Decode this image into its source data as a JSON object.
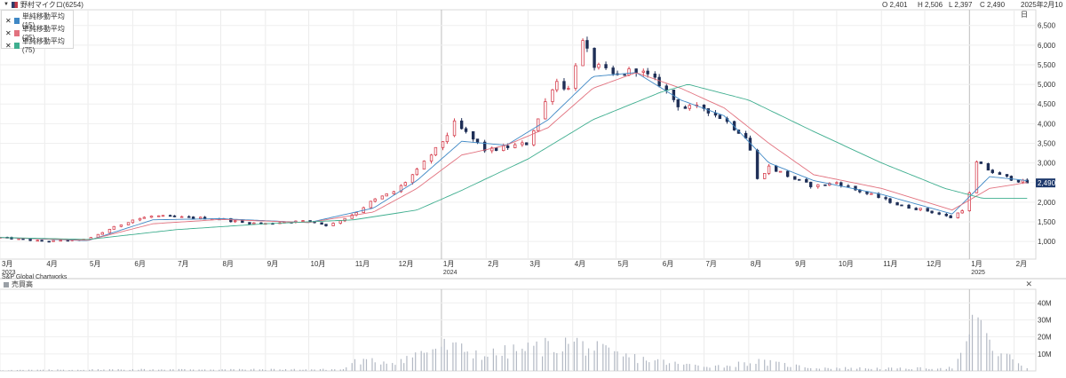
{
  "header": {
    "symbol": "野村マイクロ(6254)",
    "ohlc": {
      "open": "O 2,401",
      "high": "H 2,506",
      "low": "L 2,397",
      "close": "C 2,490"
    },
    "date": "2025年2月10日"
  },
  "legend": [
    {
      "label": "単純移動平均 (15)",
      "color": "#3f88c5"
    },
    {
      "label": "単純移動平均 (25)",
      "color": "#e2727f"
    },
    {
      "label": "単純移動平均 (75)",
      "color": "#3fae8f"
    }
  ],
  "volume_panel": {
    "title": "売買高"
  },
  "credit": "S&P Global Chartworks",
  "price_badge": "2,490",
  "colors": {
    "up": "#d6404f",
    "down": "#1f2f57",
    "ma15": "#3f88c5",
    "ma25": "#e2727f",
    "ma75": "#3fae8f",
    "volume": "#b3b9c4",
    "badge": "#1f3a6d"
  },
  "chart_data": [
    {
      "type": "candlestick",
      "y_axis_ticks": [
        "1,000",
        "1,500",
        "2,000",
        "2,500",
        "3,000",
        "3,500",
        "4,000",
        "4,500",
        "5,000",
        "5,500",
        "6,000",
        "6,500"
      ],
      "y_tick_values": [
        1000,
        1500,
        2000,
        2500,
        3000,
        3500,
        4000,
        4500,
        5000,
        5500,
        6000,
        6500
      ],
      "ylim": [
        550,
        6900
      ],
      "x_tick_labels": [
        "3月",
        "4月",
        "5月",
        "6月",
        "7月",
        "8月",
        "9月",
        "10月",
        "11月",
        "12月",
        "1月",
        "2月",
        "3月",
        "4月",
        "5月",
        "6月",
        "7月",
        "8月",
        "9月",
        "10月",
        "11月",
        "12月",
        "1月",
        "2月"
      ],
      "year_labels": [
        "2023",
        "2024",
        "2025"
      ],
      "price_path": [
        {
          "date": "2023-03-01",
          "price": 1100
        },
        {
          "date": "2023-04-01",
          "price": 1000
        },
        {
          "date": "2023-05-01",
          "price": 1050
        },
        {
          "date": "2023-05-15",
          "price": 1300
        },
        {
          "date": "2023-06-01",
          "price": 1550
        },
        {
          "date": "2023-06-15",
          "price": 1650
        },
        {
          "date": "2023-07-01",
          "price": 1620
        },
        {
          "date": "2023-07-15",
          "price": 1600
        },
        {
          "date": "2023-08-01",
          "price": 1580
        },
        {
          "date": "2023-08-15",
          "price": 1480
        },
        {
          "date": "2023-09-01",
          "price": 1450
        },
        {
          "date": "2023-09-15",
          "price": 1500
        },
        {
          "date": "2023-10-01",
          "price": 1520
        },
        {
          "date": "2023-10-15",
          "price": 1400
        },
        {
          "date": "2023-11-01",
          "price": 1700
        },
        {
          "date": "2023-11-15",
          "price": 2050
        },
        {
          "date": "2023-12-01",
          "price": 2300
        },
        {
          "date": "2023-12-15",
          "price": 2800
        },
        {
          "date": "2024-01-01",
          "price": 3500
        },
        {
          "date": "2024-01-10",
          "price": 4000
        },
        {
          "date": "2024-01-20",
          "price": 3700
        },
        {
          "date": "2024-02-01",
          "price": 3300
        },
        {
          "date": "2024-02-15",
          "price": 3400
        },
        {
          "date": "2024-03-01",
          "price": 3500
        },
        {
          "date": "2024-03-10",
          "price": 4300
        },
        {
          "date": "2024-03-20",
          "price": 5100
        },
        {
          "date": "2024-04-01",
          "price": 4800
        },
        {
          "date": "2024-04-05",
          "price": 6300
        },
        {
          "date": "2024-04-15",
          "price": 5500
        },
        {
          "date": "2024-05-01",
          "price": 5200
        },
        {
          "date": "2024-05-15",
          "price": 5400
        },
        {
          "date": "2024-06-01",
          "price": 5000
        },
        {
          "date": "2024-06-15",
          "price": 4400
        },
        {
          "date": "2024-07-01",
          "price": 4400
        },
        {
          "date": "2024-07-15",
          "price": 4100
        },
        {
          "date": "2024-08-01",
          "price": 3600
        },
        {
          "date": "2024-08-05",
          "price": 2500
        },
        {
          "date": "2024-08-15",
          "price": 2900
        },
        {
          "date": "2024-09-01",
          "price": 2600
        },
        {
          "date": "2024-09-15",
          "price": 2400
        },
        {
          "date": "2024-10-01",
          "price": 2500
        },
        {
          "date": "2024-10-15",
          "price": 2300
        },
        {
          "date": "2024-11-01",
          "price": 2100
        },
        {
          "date": "2024-11-15",
          "price": 1900
        },
        {
          "date": "2024-12-01",
          "price": 1800
        },
        {
          "date": "2024-12-20",
          "price": 1600
        },
        {
          "date": "2024-12-30",
          "price": 1900
        },
        {
          "date": "2025-01-06",
          "price": 3000
        },
        {
          "date": "2025-01-20",
          "price": 2700
        },
        {
          "date": "2025-02-10",
          "price": 2490
        }
      ],
      "moving_averages": {
        "ma15": [
          {
            "date": "2023-03-01",
            "price": 1100
          },
          {
            "date": "2023-05-01",
            "price": 1020
          },
          {
            "date": "2023-06-15",
            "price": 1550
          },
          {
            "date": "2023-08-01",
            "price": 1580
          },
          {
            "date": "2023-10-01",
            "price": 1480
          },
          {
            "date": "2023-11-15",
            "price": 1850
          },
          {
            "date": "2023-12-15",
            "price": 2550
          },
          {
            "date": "2024-01-15",
            "price": 3550
          },
          {
            "date": "2024-02-15",
            "price": 3450
          },
          {
            "date": "2024-03-15",
            "price": 4100
          },
          {
            "date": "2024-04-15",
            "price": 5200
          },
          {
            "date": "2024-05-15",
            "price": 5300
          },
          {
            "date": "2024-06-15",
            "price": 4600
          },
          {
            "date": "2024-07-15",
            "price": 4200
          },
          {
            "date": "2024-08-15",
            "price": 3000
          },
          {
            "date": "2024-09-15",
            "price": 2550
          },
          {
            "date": "2024-11-01",
            "price": 2200
          },
          {
            "date": "2024-12-20",
            "price": 1700
          },
          {
            "date": "2025-01-15",
            "price": 2650
          },
          {
            "date": "2025-02-10",
            "price": 2550
          }
        ],
        "ma25": [
          {
            "date": "2023-03-01",
            "price": 1100
          },
          {
            "date": "2023-05-01",
            "price": 1030
          },
          {
            "date": "2023-06-15",
            "price": 1450
          },
          {
            "date": "2023-08-01",
            "price": 1560
          },
          {
            "date": "2023-10-01",
            "price": 1480
          },
          {
            "date": "2023-11-15",
            "price": 1750
          },
          {
            "date": "2023-12-15",
            "price": 2350
          },
          {
            "date": "2024-01-15",
            "price": 3200
          },
          {
            "date": "2024-02-15",
            "price": 3450
          },
          {
            "date": "2024-03-15",
            "price": 3900
          },
          {
            "date": "2024-04-15",
            "price": 4900
          },
          {
            "date": "2024-05-15",
            "price": 5300
          },
          {
            "date": "2024-06-15",
            "price": 4900
          },
          {
            "date": "2024-07-15",
            "price": 4400
          },
          {
            "date": "2024-08-15",
            "price": 3500
          },
          {
            "date": "2024-09-15",
            "price": 2700
          },
          {
            "date": "2024-11-01",
            "price": 2350
          },
          {
            "date": "2024-12-20",
            "price": 1800
          },
          {
            "date": "2025-01-15",
            "price": 2350
          },
          {
            "date": "2025-02-10",
            "price": 2500
          }
        ],
        "ma75": [
          {
            "date": "2023-03-01",
            "price": 1100
          },
          {
            "date": "2023-05-01",
            "price": 1050
          },
          {
            "date": "2023-07-01",
            "price": 1300
          },
          {
            "date": "2023-09-01",
            "price": 1450
          },
          {
            "date": "2023-11-01",
            "price": 1550
          },
          {
            "date": "2023-12-15",
            "price": 1800
          },
          {
            "date": "2024-01-15",
            "price": 2300
          },
          {
            "date": "2024-03-01",
            "price": 3100
          },
          {
            "date": "2024-04-15",
            "price": 4100
          },
          {
            "date": "2024-06-01",
            "price": 4800
          },
          {
            "date": "2024-06-20",
            "price": 5000
          },
          {
            "date": "2024-08-01",
            "price": 4600
          },
          {
            "date": "2024-09-15",
            "price": 3800
          },
          {
            "date": "2024-11-01",
            "price": 3000
          },
          {
            "date": "2024-12-15",
            "price": 2350
          },
          {
            "date": "2025-01-10",
            "price": 2100
          },
          {
            "date": "2025-02-10",
            "price": 2100
          }
        ]
      }
    },
    {
      "type": "bar",
      "title": "売買高",
      "y_axis_ticks": [
        "10M",
        "20M",
        "30M",
        "40M"
      ],
      "y_tick_values": [
        10,
        20,
        30,
        40
      ],
      "ylim": [
        0,
        48
      ],
      "volume_path_millions": [
        {
          "date": "2023-03-01",
          "v": 0.5
        },
        {
          "date": "2023-06-01",
          "v": 1
        },
        {
          "date": "2023-10-25",
          "v": 1
        },
        {
          "date": "2023-11-01",
          "v": 6
        },
        {
          "date": "2023-12-01",
          "v": 6
        },
        {
          "date": "2024-01-01",
          "v": 16
        },
        {
          "date": "2024-02-01",
          "v": 10
        },
        {
          "date": "2024-04-01",
          "v": 18
        },
        {
          "date": "2024-05-01",
          "v": 10
        },
        {
          "date": "2024-06-15",
          "v": 4
        },
        {
          "date": "2024-07-15",
          "v": 3
        },
        {
          "date": "2024-08-05",
          "v": 6
        },
        {
          "date": "2024-09-15",
          "v": 2
        },
        {
          "date": "2024-11-15",
          "v": 1.5
        },
        {
          "date": "2024-12-20",
          "v": 2
        },
        {
          "date": "2024-12-31",
          "v": 15
        },
        {
          "date": "2025-01-06",
          "v": 44
        },
        {
          "date": "2025-01-15",
          "v": 15
        },
        {
          "date": "2025-02-10",
          "v": 2
        }
      ]
    }
  ]
}
